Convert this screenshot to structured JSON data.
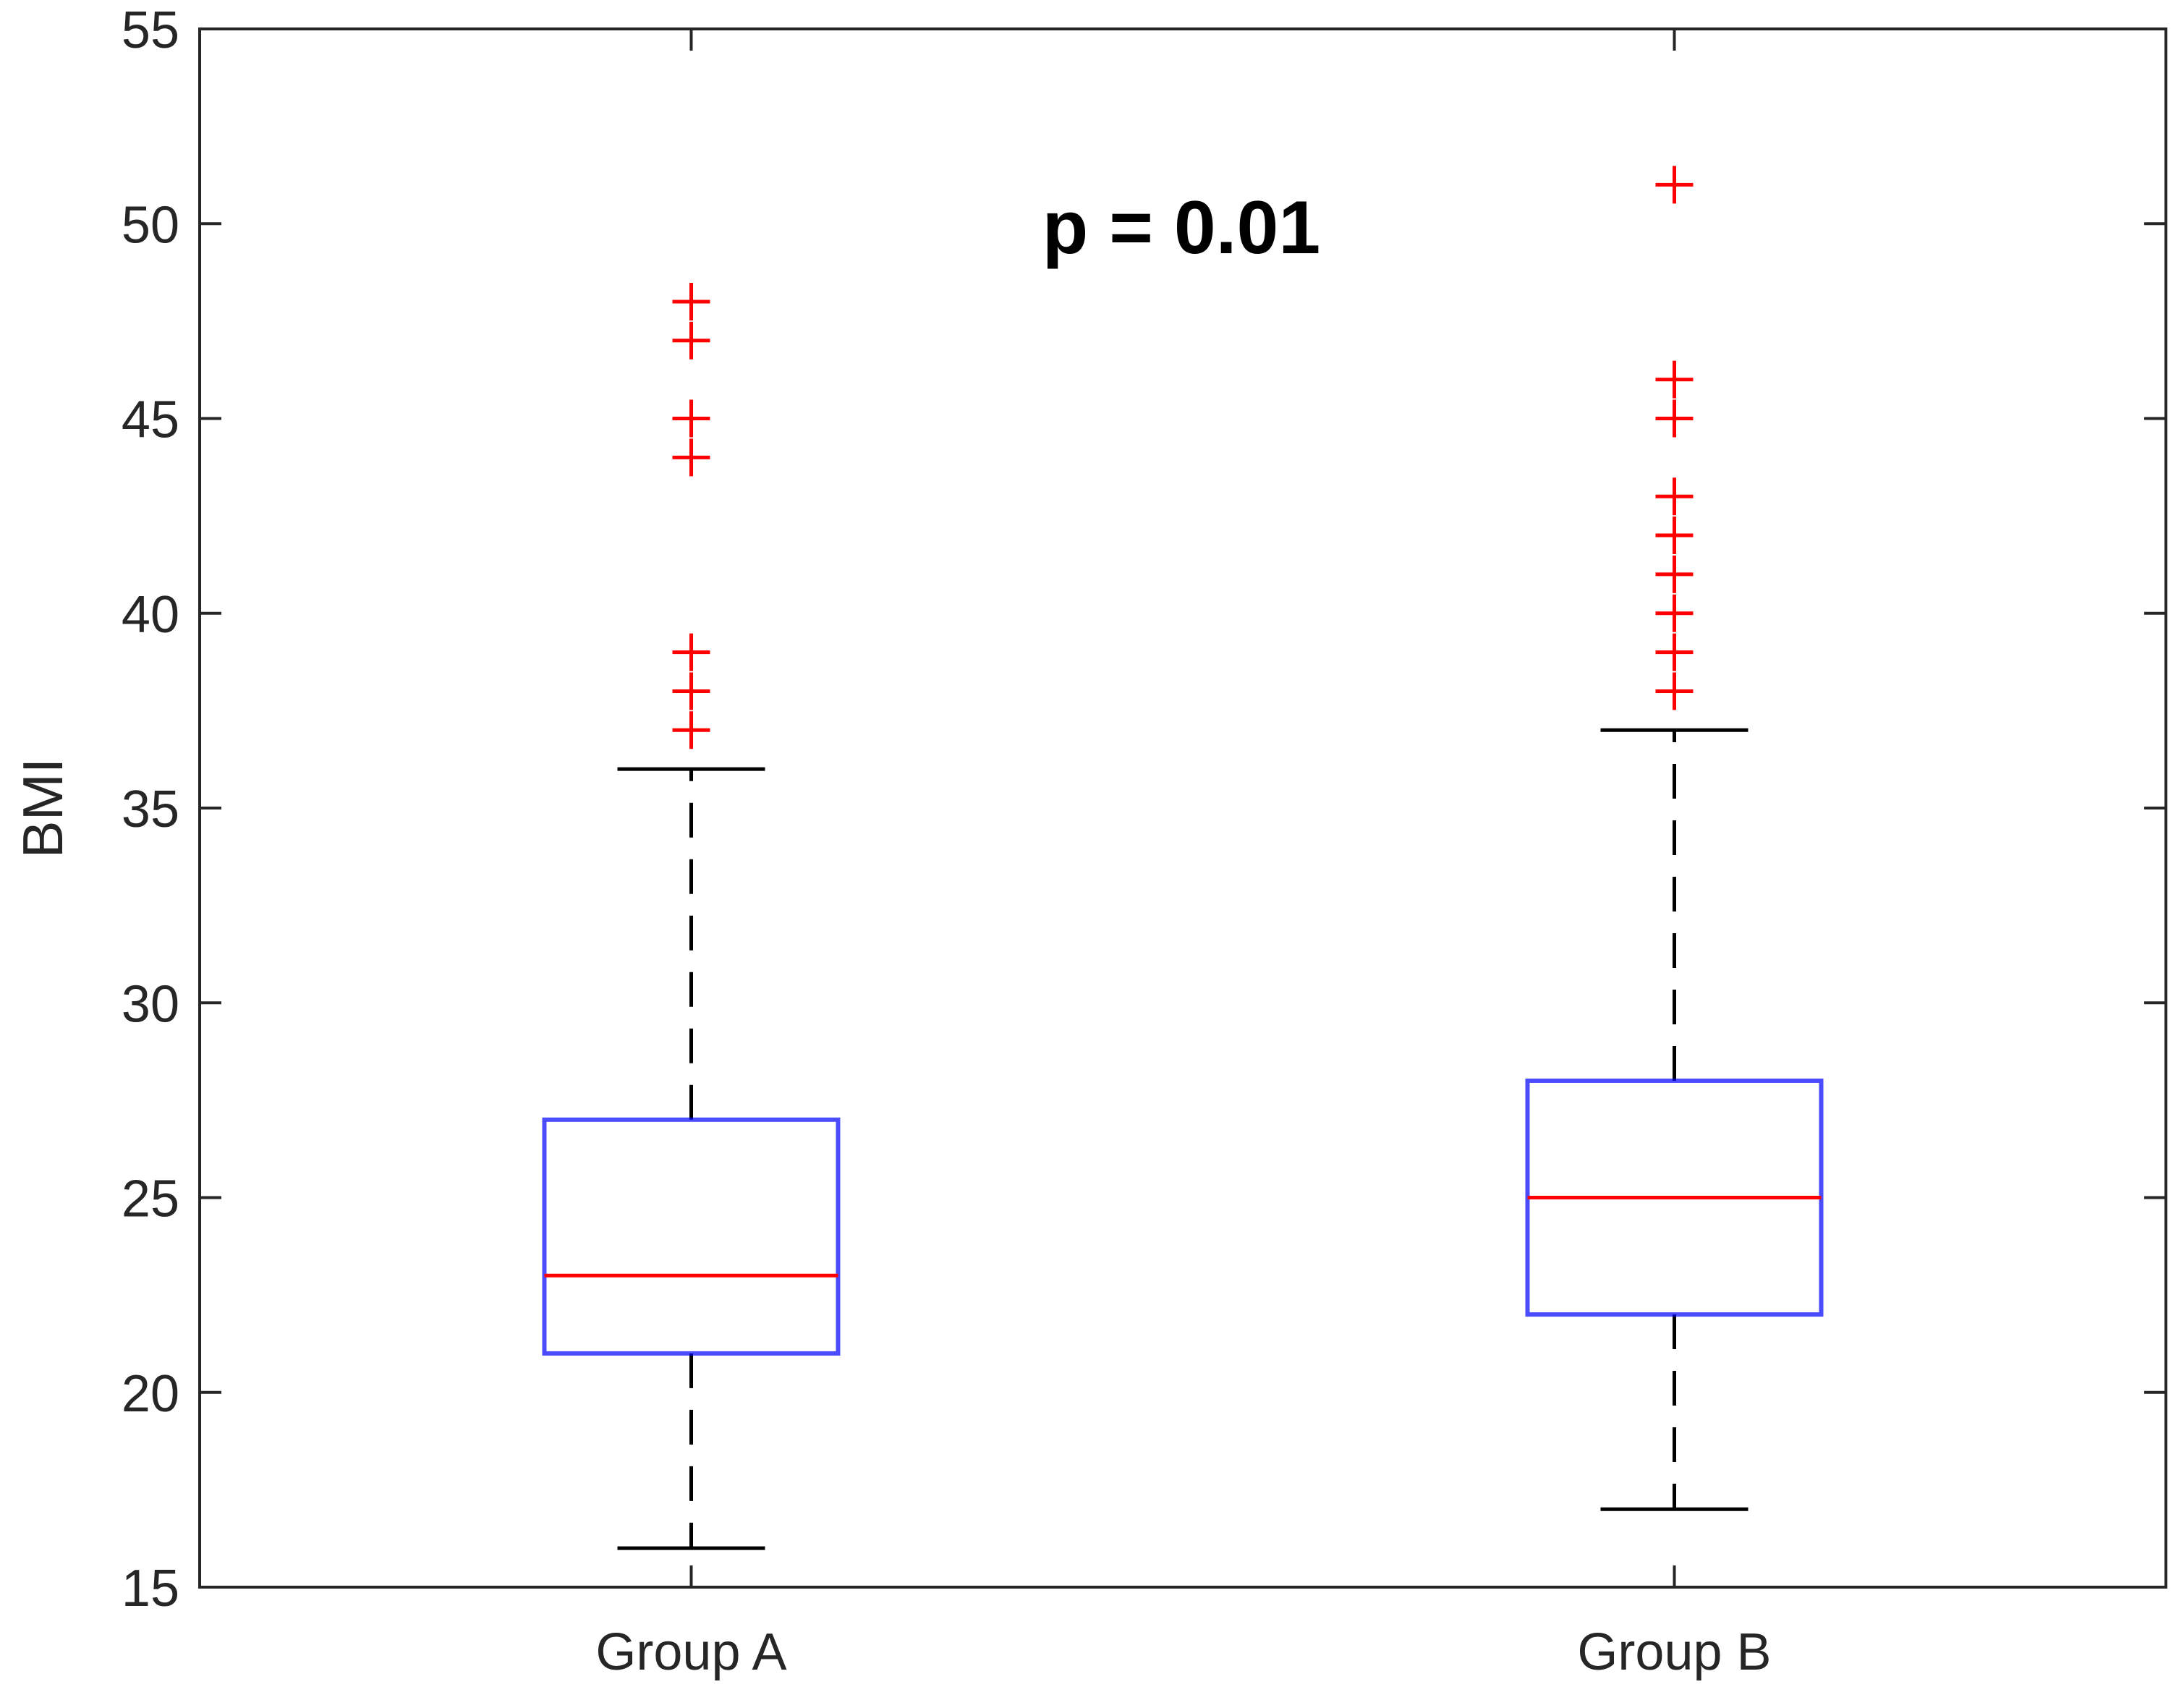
{
  "chart_data": {
    "type": "boxplot",
    "title": "",
    "xlabel": "",
    "ylabel": "BMI",
    "ylim": [
      15,
      55
    ],
    "yticks": [
      15,
      20,
      25,
      30,
      35,
      40,
      45,
      50,
      55
    ],
    "annotation": "p = 0.01",
    "grid": false,
    "legend": "none",
    "categories": [
      "Group A",
      "Group B"
    ],
    "boxes": [
      {
        "category": "Group A",
        "whisker_low": 16,
        "q1": 21,
        "median": 23,
        "q3": 27,
        "whisker_high": 36,
        "outliers": [
          37,
          38,
          39,
          44,
          45,
          47,
          48
        ]
      },
      {
        "category": "Group B",
        "whisker_low": 17,
        "q1": 22,
        "median": 25,
        "q3": 28,
        "whisker_high": 37,
        "outliers": [
          38,
          39,
          40,
          41,
          42,
          43,
          45,
          46,
          51
        ]
      }
    ],
    "colors": {
      "box": "#0000ff",
      "median": "#ff0000",
      "outlier": "#ff0000",
      "whisker": "#000000",
      "axes": "#262626"
    }
  }
}
